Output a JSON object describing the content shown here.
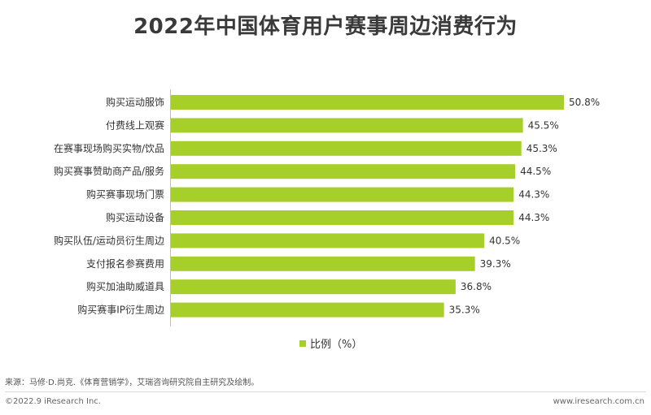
{
  "chart_data": {
    "type": "bar",
    "orientation": "horizontal",
    "title": "2022年中国体育用户赛事周边消费行为",
    "categories": [
      "购买运动服饰",
      "付费线上观赛",
      "在赛事现场购买实物/饮品",
      "购买赛事赞助商产品/服务",
      "购买赛事现场门票",
      "购买运动设备",
      "购买队伍/运动员衍生周边",
      "支付报名参赛费用",
      "购买加油助威道具",
      "购买赛事IP衍生周边"
    ],
    "series": [
      {
        "name": "比例（%）",
        "values": [
          50.8,
          45.5,
          45.3,
          44.5,
          44.3,
          44.3,
          40.5,
          39.3,
          36.8,
          35.3
        ],
        "color": "#a6cf2a"
      }
    ],
    "value_labels": [
      "50.8%",
      "45.5%",
      "45.3%",
      "44.5%",
      "44.3%",
      "44.3%",
      "40.5%",
      "39.3%",
      "36.8%",
      "35.3%"
    ],
    "xlim": [
      0,
      50.8
    ],
    "legend": "bottom",
    "grid": false
  },
  "footer": {
    "source": "来源：马修·D.尚克.《体育营销学》，艾瑞咨询研究院自主研究及绘制。",
    "copyright": "©2022.9 iResearch Inc.",
    "website": "www.iresearch.com.cn"
  }
}
